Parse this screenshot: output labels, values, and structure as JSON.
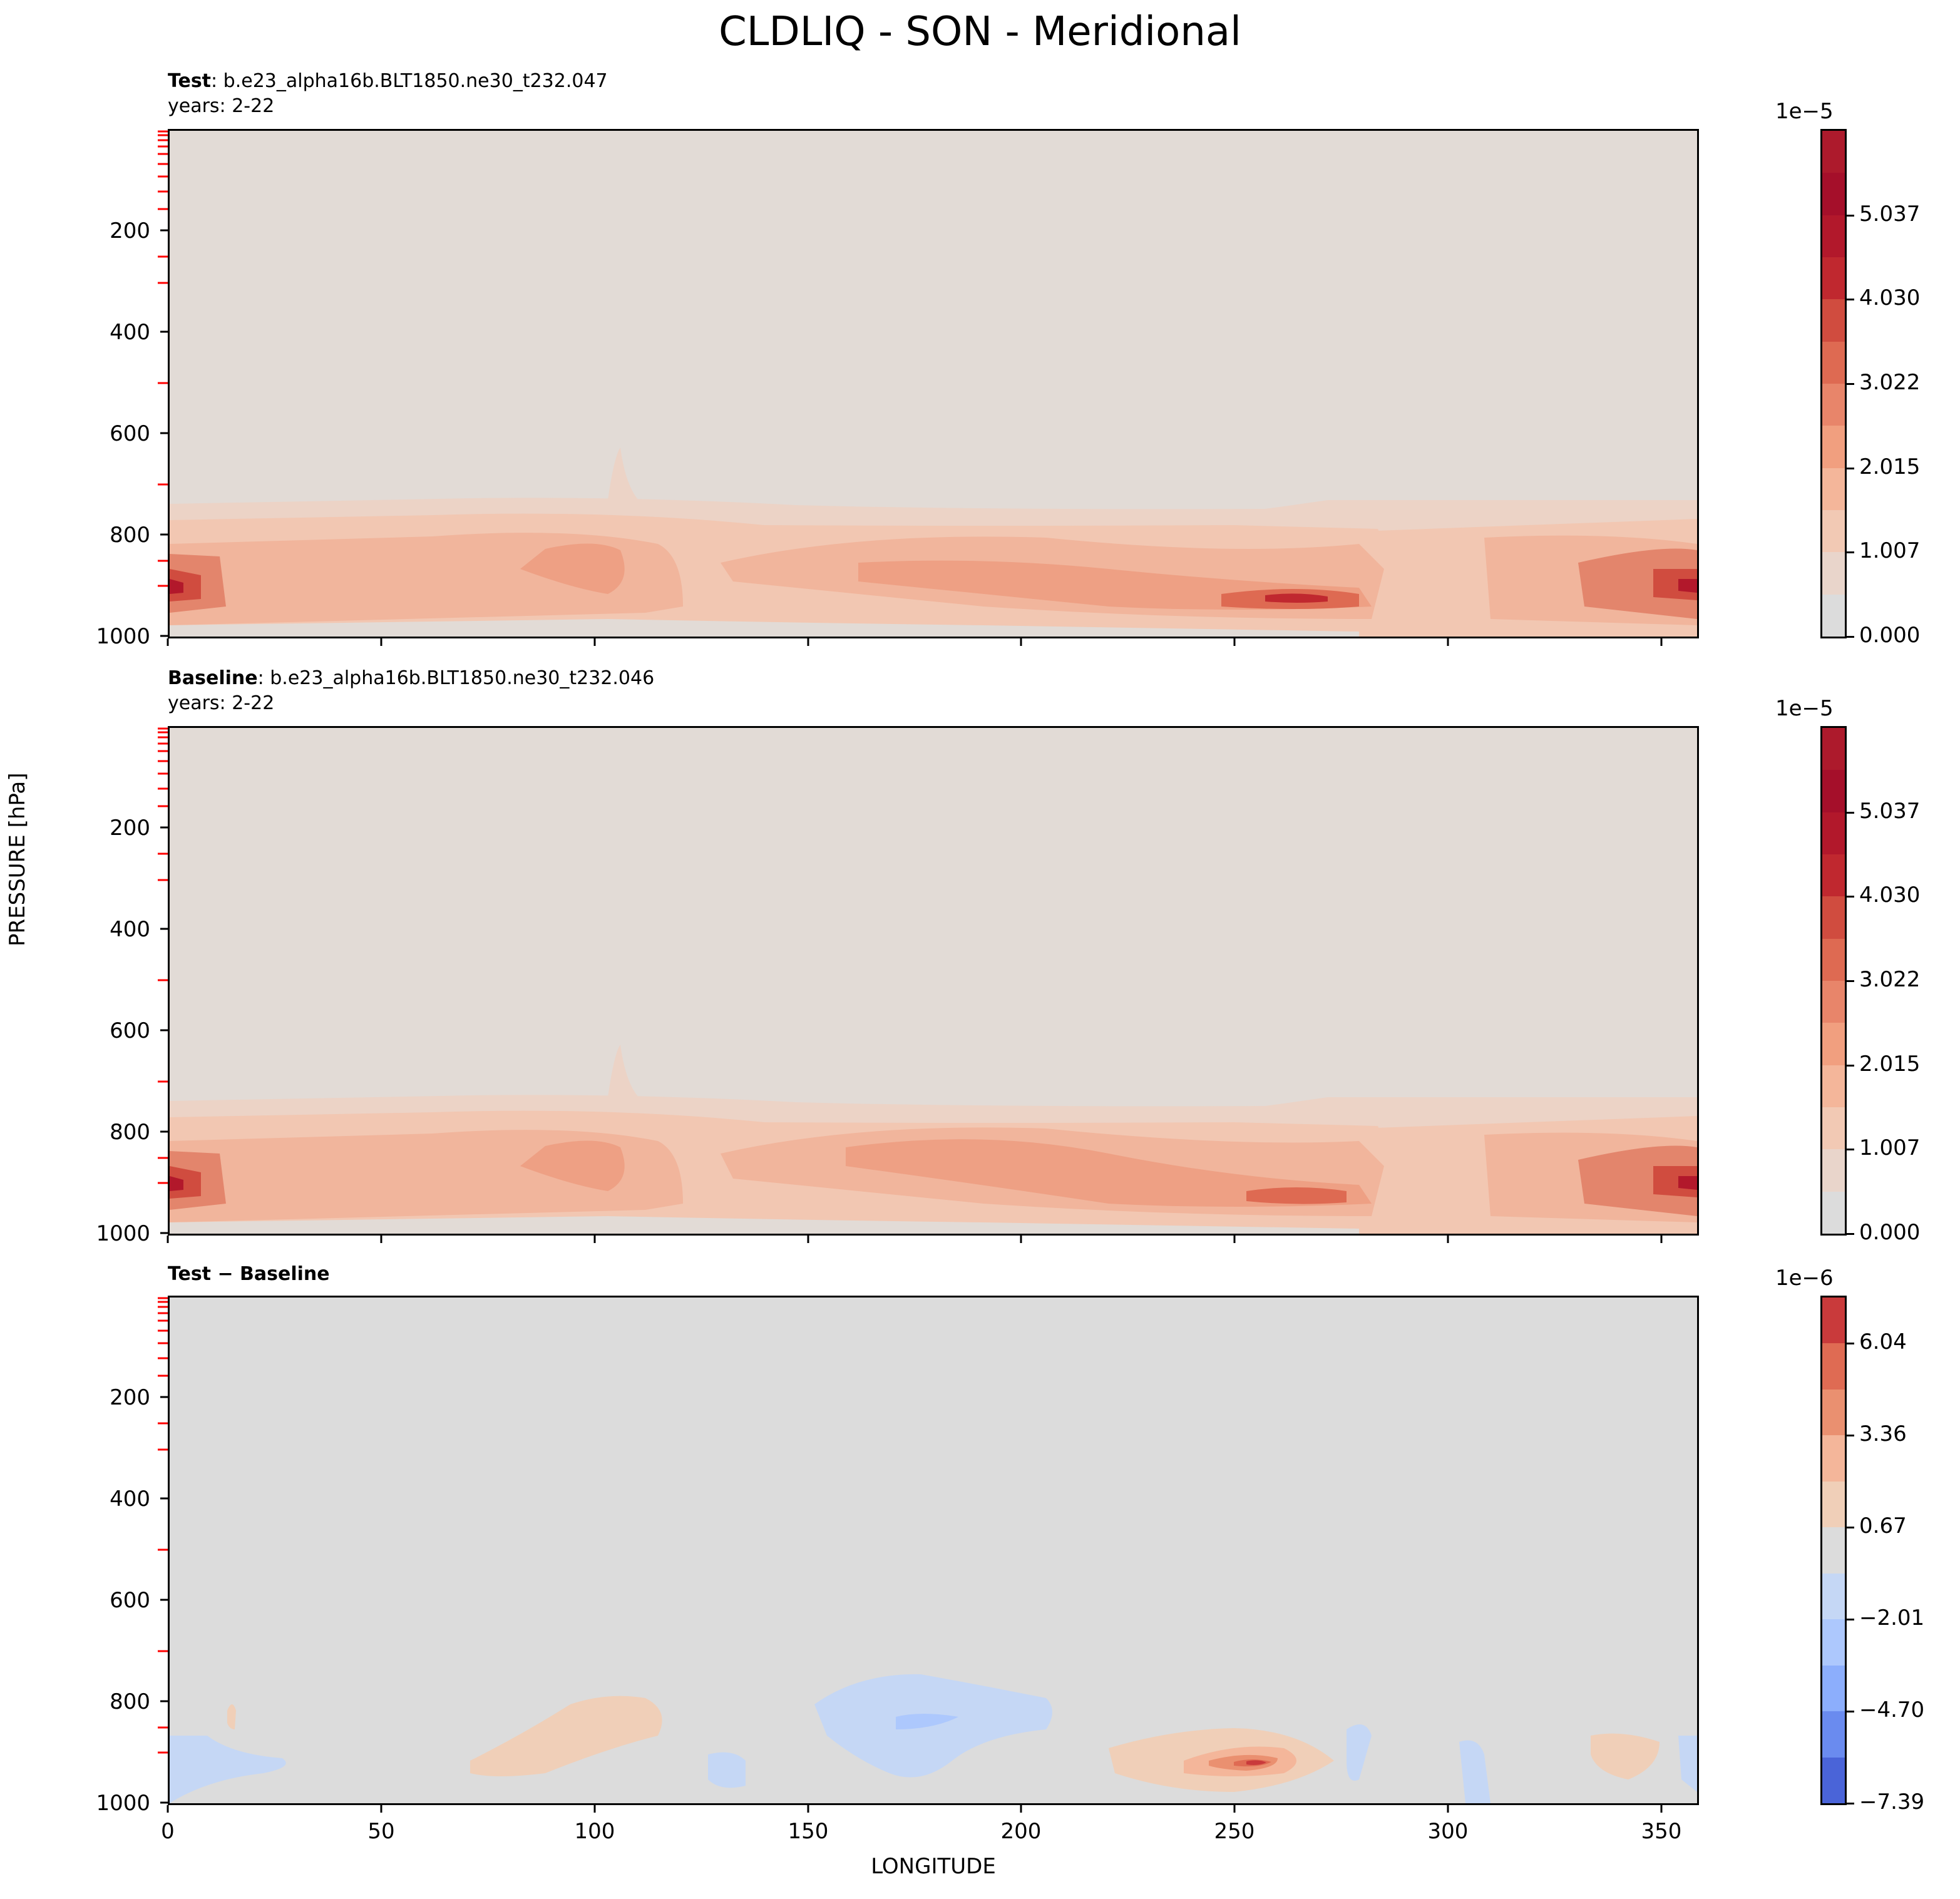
{
  "figure": {
    "title": "CLDLIQ - SON - Meridional",
    "ylabel": "PRESSURE [hPa]",
    "xlabel": "LONGITUDE"
  },
  "panels": [
    {
      "label_bold": "Test",
      "label_rest": ": b.e23_alpha16b.BLT1850.ne30_t232.047",
      "years": "years: 2-22",
      "colorbar": {
        "exponent": "1e−5",
        "ticks": [
          "0.000",
          "1.007",
          "2.015",
          "3.022",
          "4.030",
          "5.037"
        ],
        "colors": [
          "#dcdcdc",
          "#e9d5cb",
          "#f2c9b4",
          "#f4b69a",
          "#f19f7f",
          "#e8856a",
          "#de6a52",
          "#d04c3f",
          "#c0282f",
          "#b2182b",
          "#a50f2a",
          "#ad1a2c"
        ]
      }
    },
    {
      "label_bold": "Baseline",
      "label_rest": ": b.e23_alpha16b.BLT1850.ne30_t232.046",
      "years": "years: 2-22",
      "colorbar": {
        "exponent": "1e−5",
        "ticks": [
          "0.000",
          "1.007",
          "2.015",
          "3.022",
          "4.030",
          "5.037"
        ],
        "colors": [
          "#dcdcdc",
          "#e9d5cb",
          "#f2c9b4",
          "#f4b69a",
          "#f19f7f",
          "#e8856a",
          "#de6a52",
          "#d04c3f",
          "#c0282f",
          "#b2182b",
          "#a50f2a",
          "#ad1a2c"
        ]
      }
    },
    {
      "label_bold": "Test − Baseline",
      "label_rest": "",
      "years": "",
      "colorbar": {
        "exponent": "1e−6",
        "ticks": [
          "−7.39",
          "−4.70",
          "−2.01",
          "0.67",
          "3.36",
          "6.04"
        ],
        "colors": [
          "#4a64d8",
          "#6a8bef",
          "#8caefc",
          "#adc8fd",
          "#c5d7f5",
          "#dcdcdc",
          "#f0cfb8",
          "#f4b69a",
          "#ea9070",
          "#df6b53",
          "#c93a3b"
        ]
      }
    }
  ],
  "axes": {
    "yticks": [
      "200",
      "400",
      "600",
      "800",
      "1000"
    ],
    "xticks": [
      "0",
      "50",
      "100",
      "150",
      "200",
      "250",
      "300",
      "350"
    ]
  },
  "chart_data": [
    {
      "type": "heatmap",
      "title": "Test",
      "field": "CLDLIQ",
      "season": "SON",
      "xlabel": "LONGITUDE",
      "ylabel": "PRESSURE [hPa]",
      "xlim": [
        0,
        359
      ],
      "ylim": [
        1000,
        0
      ],
      "y_scale": "linear",
      "colorbar_range": [
        0.0,
        5.54e-05
      ],
      "features": [
        {
          "lon": 3,
          "pressure": 920,
          "value": 5.3e-05
        },
        {
          "lon": 357,
          "pressure": 920,
          "value": 5.3e-05
        },
        {
          "lon": 262,
          "pressure": 925,
          "value": 4.5e-05
        },
        {
          "lon": 95,
          "pressure": 850,
          "value": 3e-05
        },
        {
          "lon": 185,
          "pressure": 880,
          "value": 2.6e-05
        },
        {
          "lon": 290,
          "pressure": 950,
          "value": 5e-06
        }
      ]
    },
    {
      "type": "heatmap",
      "title": "Baseline",
      "field": "CLDLIQ",
      "season": "SON",
      "xlabel": "LONGITUDE",
      "ylabel": "PRESSURE [hPa]",
      "xlim": [
        0,
        359
      ],
      "ylim": [
        1000,
        0
      ],
      "y_scale": "linear",
      "colorbar_range": [
        0.0,
        5.54e-05
      ],
      "features": [
        {
          "lon": 3,
          "pressure": 920,
          "value": 5.3e-05
        },
        {
          "lon": 357,
          "pressure": 920,
          "value": 5.3e-05
        },
        {
          "lon": 262,
          "pressure": 925,
          "value": 4e-05
        },
        {
          "lon": 95,
          "pressure": 850,
          "value": 3e-05
        },
        {
          "lon": 185,
          "pressure": 860,
          "value": 2.9e-05
        },
        {
          "lon": 290,
          "pressure": 950,
          "value": 5e-06
        }
      ]
    },
    {
      "type": "heatmap",
      "title": "Test − Baseline",
      "field": "CLDLIQ",
      "season": "SON",
      "xlabel": "LONGITUDE",
      "ylabel": "PRESSURE [hPa]",
      "xlim": [
        0,
        359
      ],
      "ylim": [
        1000,
        0
      ],
      "y_scale": "linear",
      "colorbar_range": [
        -7.39e-06,
        7.4e-06
      ],
      "features": [
        {
          "lon": 258,
          "pressure": 925,
          "value": 6.5e-06
        },
        {
          "lon": 85,
          "pressure": 830,
          "value": 1.5e-06
        },
        {
          "lon": 340,
          "pressure": 930,
          "value": 2e-06
        },
        {
          "lon": 180,
          "pressure": 860,
          "value": -2.5e-06
        },
        {
          "lon": 5,
          "pressure": 930,
          "value": -1.5e-06
        },
        {
          "lon": 300,
          "pressure": 920,
          "value": -1.2e-06
        }
      ]
    }
  ]
}
